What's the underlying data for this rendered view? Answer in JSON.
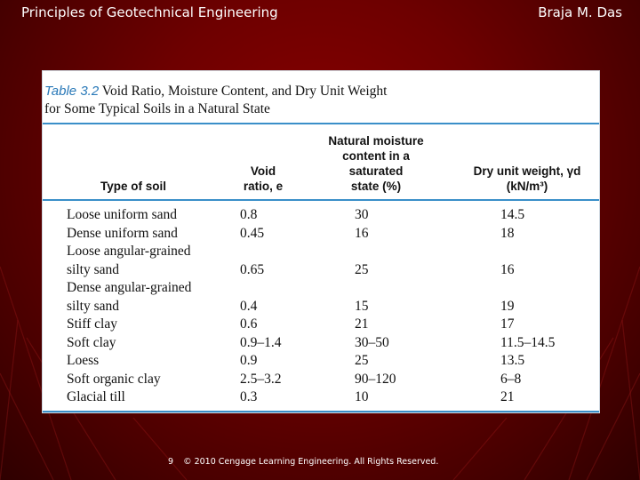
{
  "header": {
    "left": "Principles of Geotechnical Engineering",
    "right": "Braja M. Das"
  },
  "table": {
    "number": "Table 3.2",
    "caption_line1": "Void Ratio, Moisture Content, and Dry Unit Weight",
    "caption_line2": "for Some Typical Soils in a Natural State",
    "columns": {
      "type": "Type of soil",
      "void_1": "Void",
      "void_2": "ratio, e",
      "moist_1": "Natural moisture",
      "moist_2": "content in a",
      "moist_3": "saturated",
      "moist_4": "state (%)",
      "dry_1": "Dry unit weight, γd",
      "dry_2": "(kN/m³)"
    },
    "rows": [
      {
        "type": "Loose uniform sand",
        "void": "0.8",
        "moist": "30",
        "dry": "14.5"
      },
      {
        "type": "Dense uniform sand",
        "void": "0.45",
        "moist": "16",
        "dry": "18"
      },
      {
        "type": "Loose angular-grained",
        "void": "",
        "moist": "",
        "dry": ""
      },
      {
        "type": "silty sand",
        "void": "0.65",
        "moist": "25",
        "dry": "16"
      },
      {
        "type": "Dense angular-grained",
        "void": "",
        "moist": "",
        "dry": ""
      },
      {
        "type": "silty sand",
        "void": "0.4",
        "moist": "15",
        "dry": "19"
      },
      {
        "type": "Stiff clay",
        "void": "0.6",
        "moist": "21",
        "dry": "17"
      },
      {
        "type": "Soft clay",
        "void": "0.9–1.4",
        "moist": "30–50",
        "dry": "11.5–14.5"
      },
      {
        "type": "Loess",
        "void": "0.9",
        "moist": "25",
        "dry": "13.5"
      },
      {
        "type": "Soft organic clay",
        "void": "2.5–3.2",
        "moist": "90–120",
        "dry": "6–8"
      },
      {
        "type": "Glacial till",
        "void": "0.3",
        "moist": "10",
        "dry": "21"
      }
    ]
  },
  "footer": {
    "page": "9",
    "copyright": "© 2010 Cengage Learning Engineering. All Rights Reserved."
  }
}
